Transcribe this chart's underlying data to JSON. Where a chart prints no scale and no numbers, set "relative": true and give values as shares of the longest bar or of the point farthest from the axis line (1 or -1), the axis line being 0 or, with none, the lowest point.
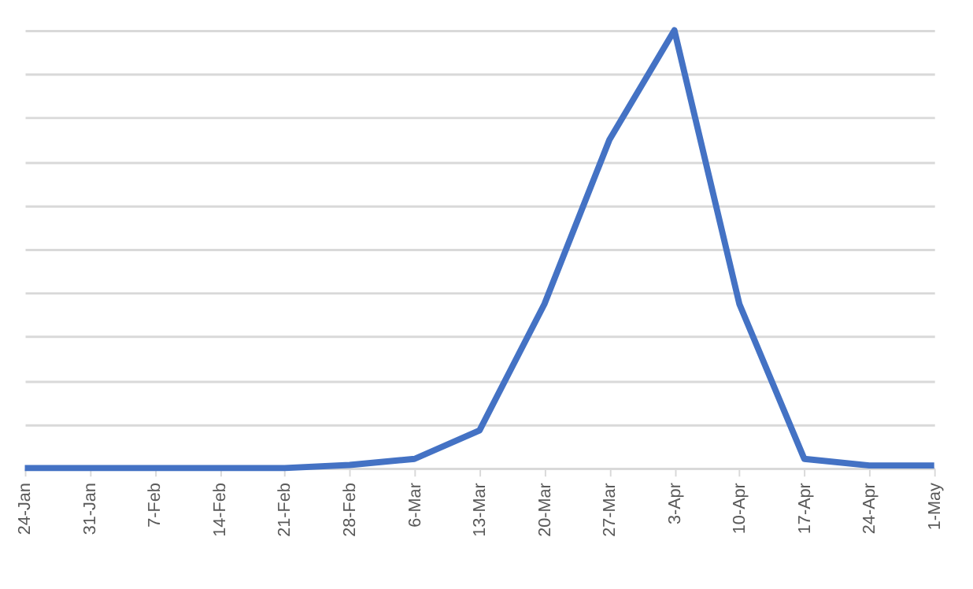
{
  "chart_data": {
    "type": "line",
    "relative": true,
    "grid": "y",
    "marker": "none",
    "line_style": "solid",
    "categories": [
      "24-Jan",
      "31-Jan",
      "7-Feb",
      "14-Feb",
      "21-Feb",
      "28-Feb",
      "6-Mar",
      "13-Mar",
      "20-Mar",
      "27-Mar",
      "3-Apr",
      "10-Apr",
      "17-Apr",
      "24-Apr",
      "1-May"
    ],
    "series": [
      {
        "color": "#4472c4",
        "values": [
          0,
          0,
          0,
          0,
          0,
          0.007,
          0.021,
          0.086,
          0.375,
          0.75,
          1,
          0.375,
          0.021,
          0.006,
          0.006
        ]
      }
    ]
  }
}
